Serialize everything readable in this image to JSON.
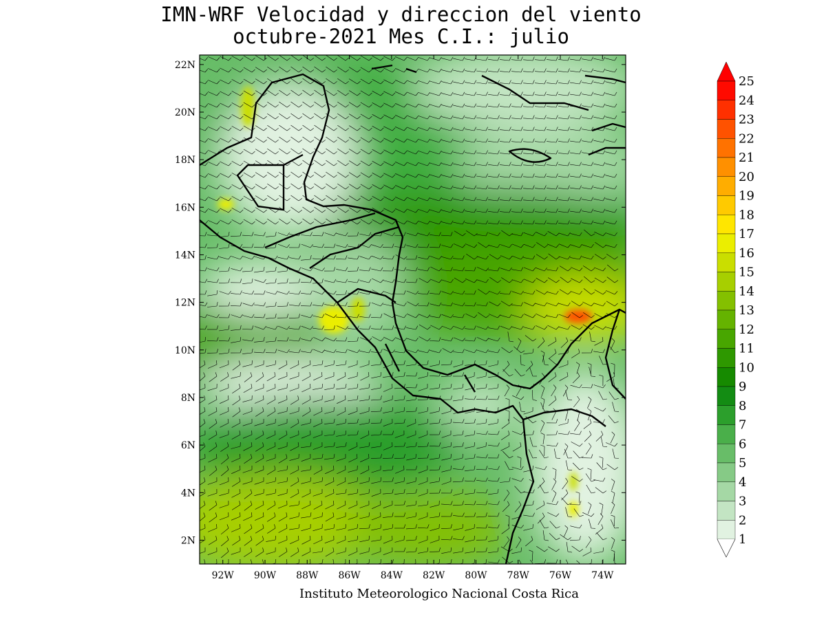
{
  "title_line1": "IMN-WRF Velocidad y direccion del viento",
  "title_line2": "octubre-2021 Mes C.I.: julio",
  "footer": "Instituto Meteorologico Nacional Costa Rica",
  "axes": {
    "lon_labels": [
      "92W",
      "90W",
      "88W",
      "86W",
      "84W",
      "82W",
      "80W",
      "78W",
      "76W",
      "74W"
    ],
    "lon_values": [
      -92,
      -90,
      -88,
      -86,
      -84,
      -82,
      -80,
      -78,
      -76,
      -74
    ],
    "lat_labels": [
      "22N",
      "20N",
      "18N",
      "16N",
      "14N",
      "12N",
      "10N",
      "8N",
      "6N",
      "4N",
      "2N"
    ],
    "lat_values": [
      22,
      20,
      18,
      16,
      14,
      12,
      10,
      8,
      6,
      4,
      2
    ],
    "lon_range": [
      -93.1,
      -72.9
    ],
    "lat_range": [
      1.0,
      22.4
    ]
  },
  "colorbar": {
    "levels": [
      "1",
      "2",
      "3",
      "4",
      "5",
      "6",
      "7",
      "8",
      "9",
      "10",
      "11",
      "12",
      "13",
      "14",
      "15",
      "16",
      "17",
      "18",
      "19",
      "20",
      "21",
      "22",
      "23",
      "24",
      "25"
    ],
    "colors": [
      "#ffffff",
      "#e1f2e1",
      "#c3e5c3",
      "#a5d8a5",
      "#86ca86",
      "#68bd68",
      "#4aaf4a",
      "#2c9f2c",
      "#138c13",
      "#168a00",
      "#2e9800",
      "#48a600",
      "#65b300",
      "#84c000",
      "#a7cf00",
      "#cade00",
      "#ebee00",
      "#ffe600",
      "#ffca00",
      "#ffad00",
      "#ff9000",
      "#ff7200",
      "#ff5200",
      "#ff3000",
      "#ff0a00"
    ],
    "arrow_color": "#ff0000",
    "unit": "",
    "range": [
      1,
      25
    ]
  }
}
